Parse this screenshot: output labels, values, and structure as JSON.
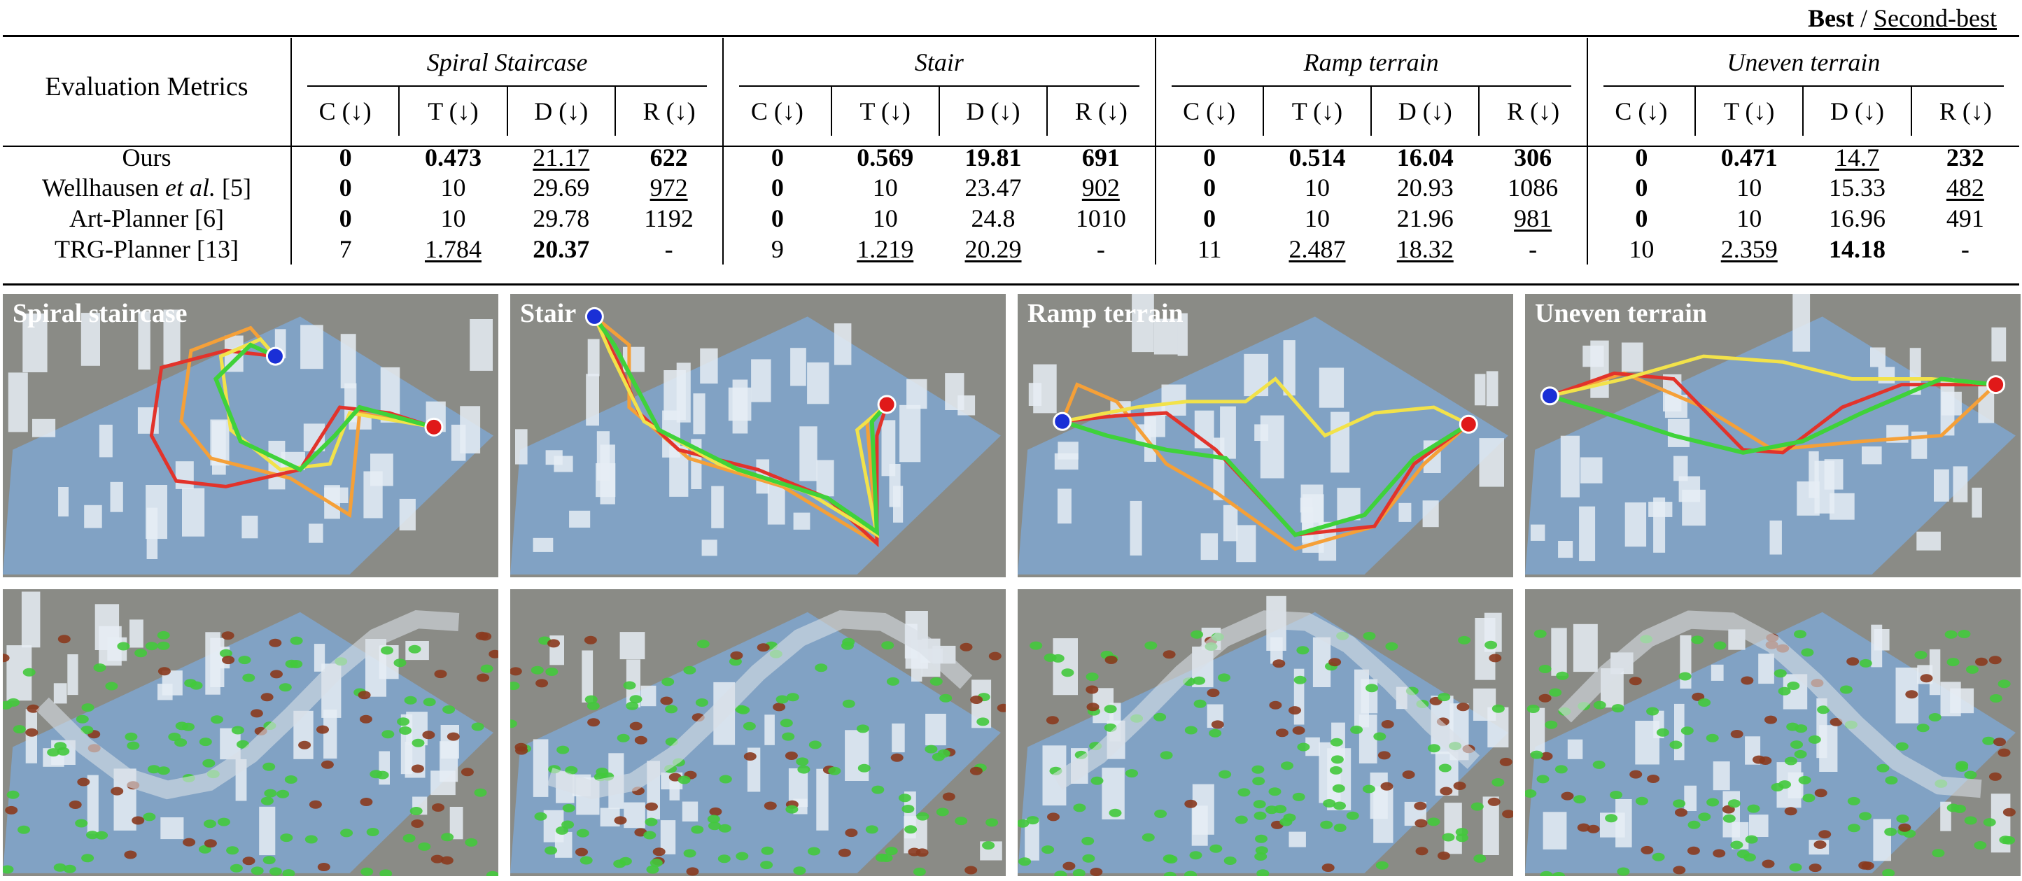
{
  "legend": {
    "best": "Best",
    "sep": "/",
    "second": "Second-best"
  },
  "table": {
    "metric_header": "Evaluation Metrics",
    "groups": [
      "Spiral Staircase",
      "Stair",
      "Ramp terrain",
      "Uneven terrain"
    ],
    "subcols": [
      "C (↓)",
      "T (↓)",
      "D (↓)",
      "R (↓)"
    ],
    "rows": [
      {
        "method": "Ours",
        "ref": "",
        "cells": [
          {
            "v": "0",
            "s": "bold"
          },
          {
            "v": "0.473",
            "s": "bold"
          },
          {
            "v": "21.17",
            "s": "ul"
          },
          {
            "v": "622",
            "s": "bold"
          },
          {
            "v": "0",
            "s": "bold"
          },
          {
            "v": "0.569",
            "s": "bold"
          },
          {
            "v": "19.81",
            "s": "bold"
          },
          {
            "v": "691",
            "s": "bold"
          },
          {
            "v": "0",
            "s": "bold"
          },
          {
            "v": "0.514",
            "s": "bold"
          },
          {
            "v": "16.04",
            "s": "bold"
          },
          {
            "v": "306",
            "s": "bold"
          },
          {
            "v": "0",
            "s": "bold"
          },
          {
            "v": "0.471",
            "s": "bold"
          },
          {
            "v": "14.7",
            "s": "ul"
          },
          {
            "v": "232",
            "s": "bold"
          }
        ]
      },
      {
        "method": "Wellhausen",
        "etal": "et al.",
        "ref": "[5]",
        "cells": [
          {
            "v": "0",
            "s": "bold"
          },
          {
            "v": "10",
            "s": ""
          },
          {
            "v": "29.69",
            "s": ""
          },
          {
            "v": "972",
            "s": "ul"
          },
          {
            "v": "0",
            "s": "bold"
          },
          {
            "v": "10",
            "s": ""
          },
          {
            "v": "23.47",
            "s": ""
          },
          {
            "v": "902",
            "s": "ul"
          },
          {
            "v": "0",
            "s": "bold"
          },
          {
            "v": "10",
            "s": ""
          },
          {
            "v": "20.93",
            "s": ""
          },
          {
            "v": "1086",
            "s": ""
          },
          {
            "v": "0",
            "s": "bold"
          },
          {
            "v": "10",
            "s": ""
          },
          {
            "v": "15.33",
            "s": ""
          },
          {
            "v": "482",
            "s": "ul"
          }
        ]
      },
      {
        "method": "Art-Planner",
        "ref": "[6]",
        "cells": [
          {
            "v": "0",
            "s": "bold"
          },
          {
            "v": "10",
            "s": ""
          },
          {
            "v": "29.78",
            "s": ""
          },
          {
            "v": "1192",
            "s": ""
          },
          {
            "v": "0",
            "s": "bold"
          },
          {
            "v": "10",
            "s": ""
          },
          {
            "v": "24.8",
            "s": ""
          },
          {
            "v": "1010",
            "s": ""
          },
          {
            "v": "0",
            "s": "bold"
          },
          {
            "v": "10",
            "s": ""
          },
          {
            "v": "21.96",
            "s": ""
          },
          {
            "v": "981",
            "s": "ul"
          },
          {
            "v": "0",
            "s": "bold"
          },
          {
            "v": "10",
            "s": ""
          },
          {
            "v": "16.96",
            "s": ""
          },
          {
            "v": "491",
            "s": ""
          }
        ]
      },
      {
        "method": "TRG-Planner",
        "ref": "[13]",
        "cells": [
          {
            "v": "7",
            "s": ""
          },
          {
            "v": "1.784",
            "s": "ul"
          },
          {
            "v": "20.37",
            "s": "bold"
          },
          {
            "v": "-",
            "s": ""
          },
          {
            "v": "9",
            "s": ""
          },
          {
            "v": "1.219",
            "s": "ul"
          },
          {
            "v": "20.29",
            "s": "ul"
          },
          {
            "v": "-",
            "s": ""
          },
          {
            "v": "11",
            "s": ""
          },
          {
            "v": "2.487",
            "s": "ul"
          },
          {
            "v": "18.32",
            "s": "ul"
          },
          {
            "v": "-",
            "s": ""
          },
          {
            "v": "10",
            "s": ""
          },
          {
            "v": "2.359",
            "s": "ul"
          },
          {
            "v": "14.18",
            "s": "bold"
          },
          {
            "v": "-",
            "s": ""
          }
        ]
      }
    ]
  },
  "panels": {
    "labels": [
      "Spiral staircase",
      "Stair",
      "Ramp terrain",
      "Uneven terrain"
    ],
    "colors": {
      "background": "#8a8b86",
      "ground": "#7fa6cf",
      "structure": "#e6edf5",
      "path_red": "#e2332b",
      "path_orange": "#f5a038",
      "path_yellow": "#f2e24a",
      "path_green": "#3fd23a",
      "start_marker": "#1a2fd6",
      "goal_marker": "#e01919"
    }
  }
}
